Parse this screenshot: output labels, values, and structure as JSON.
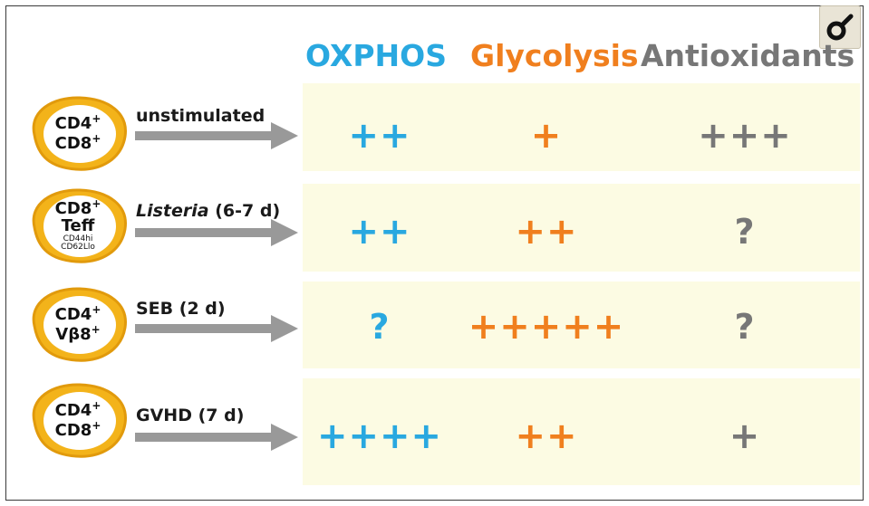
{
  "columns": {
    "oxphos": "OXPHOS",
    "glycolysis": "Glycolysis",
    "antioxidants": "Antioxidants"
  },
  "colors": {
    "oxphos": "#29a8e0",
    "glycolysis": "#f07f1e",
    "antioxidants": "#777777",
    "cell_fill": "#f3b31a",
    "cell_stroke": "#e19a0c",
    "band": "#fcfbe3",
    "arrow": "#999999"
  },
  "zoom_icon": "male-symbol-icon",
  "rows": [
    {
      "cell": {
        "line1": "CD4",
        "line1_sup": "+",
        "line2": "CD8",
        "line2_sup": "+",
        "line3": "",
        "line4": ""
      },
      "condition": "unstimulated",
      "condition_italic": "",
      "condition_rest": "",
      "oxphos": "++",
      "glycolysis": "+",
      "antioxidants": "+++"
    },
    {
      "cell": {
        "line1": "CD8",
        "line1_sup": "+",
        "line2": "Teff",
        "line2_sup": "",
        "line3": "CD44hi",
        "line4": "CD62Llo"
      },
      "condition": "",
      "condition_italic": "Listeria",
      "condition_rest": " (6-7 d)",
      "oxphos": "++",
      "glycolysis": "++",
      "antioxidants": "?"
    },
    {
      "cell": {
        "line1": "CD4",
        "line1_sup": "+",
        "line2": "Vβ8",
        "line2_sup": "+",
        "line3": "",
        "line4": ""
      },
      "condition": "SEB (2 d)",
      "condition_italic": "",
      "condition_rest": "",
      "oxphos": "?",
      "glycolysis": "+++++",
      "antioxidants": "?"
    },
    {
      "cell": {
        "line1": "CD4",
        "line1_sup": "+",
        "line2": "CD8",
        "line2_sup": "+",
        "line3": "",
        "line4": ""
      },
      "condition": "GVHD (7 d)",
      "condition_italic": "",
      "condition_rest": "",
      "oxphos": "++++",
      "glycolysis": "++",
      "antioxidants": "+"
    }
  ]
}
